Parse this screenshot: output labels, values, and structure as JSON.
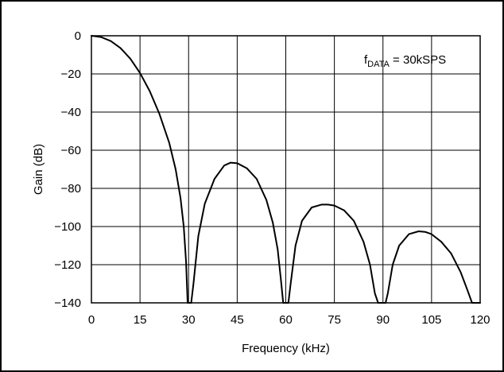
{
  "chart_data": {
    "type": "line",
    "title": "",
    "xlabel": "Frequency (kHz)",
    "ylabel": "Gain (dB)",
    "xlim": [
      0,
      120
    ],
    "ylim": [
      -140,
      0
    ],
    "x_ticks": [
      0,
      15,
      30,
      45,
      60,
      75,
      90,
      105,
      120
    ],
    "y_ticks": [
      0,
      -20,
      -40,
      -60,
      -80,
      -100,
      -120,
      -140
    ],
    "x_tick_labels": [
      "0",
      "15",
      "30",
      "45",
      "60",
      "75",
      "90",
      "105",
      "120"
    ],
    "y_tick_labels": [
      "0",
      "−20",
      "−40",
      "−60",
      "−80",
      "−100",
      "−120",
      "−140"
    ],
    "grid": true,
    "annotation": {
      "prefix": "f",
      "subscript": "DATA",
      "suffix": " = 30kSPS",
      "placement": "top-right"
    },
    "series": [
      {
        "color": "#000000",
        "x": [
          0,
          3,
          6,
          9,
          12,
          15,
          18,
          21,
          24,
          26,
          27.5,
          28.5,
          29.2,
          29.7,
          30,
          30.3,
          30.8,
          31.5,
          33,
          35,
          38,
          41,
          43,
          45,
          48,
          51,
          54,
          56,
          57.5,
          58.5,
          59.2,
          59.7,
          60,
          60.3,
          60.8,
          61.5,
          63,
          65,
          68,
          71,
          73,
          75,
          78,
          81,
          84,
          86,
          87.5,
          88.5,
          89.2,
          89.7,
          90,
          90.3,
          90.8,
          91.5,
          93,
          95,
          98,
          101,
          103,
          105,
          108,
          111,
          114,
          116,
          117.5,
          118.5,
          119.2,
          119.7,
          120
        ],
        "y": [
          0,
          -0.7,
          -2.8,
          -6.5,
          -12,
          -19.5,
          -29,
          -41,
          -56,
          -70,
          -85,
          -100,
          -118,
          -140,
          -140,
          -140,
          -140,
          -130,
          -105,
          -88,
          -75,
          -68,
          -66.5,
          -66.8,
          -69.5,
          -75,
          -86,
          -98,
          -112,
          -128,
          -140,
          -140,
          -140,
          -140,
          -140,
          -130,
          -110,
          -97,
          -90,
          -88.5,
          -88.5,
          -89,
          -91.5,
          -97,
          -108,
          -120,
          -135,
          -140,
          -140,
          -140,
          -140,
          -140,
          -140,
          -135,
          -120,
          -110,
          -104,
          -102.5,
          -102.8,
          -104,
          -108,
          -114,
          -124,
          -133,
          -140,
          -140,
          -140,
          -140,
          -140
        ]
      }
    ]
  }
}
